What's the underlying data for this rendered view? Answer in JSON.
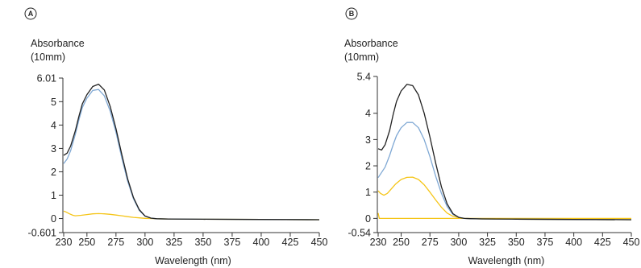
{
  "chart_data": [
    {
      "panel": "A",
      "type": "line",
      "ylabel_line1": "Absorbance",
      "ylabel_line2": "(10mm)",
      "xlabel": "Wavelength (nm)",
      "xlim": [
        230,
        450
      ],
      "ylim": [
        -0.601,
        6.01
      ],
      "x_ticks": [
        230,
        250,
        275,
        300,
        325,
        350,
        375,
        400,
        425,
        450
      ],
      "y_ticks": [
        -0.601,
        0,
        1,
        2,
        3,
        4,
        5,
        6.01
      ],
      "y_tick_labels": [
        "-0.601",
        "0",
        "1",
        "2",
        "3",
        "4",
        "5",
        "6.01"
      ],
      "series": [
        {
          "color": "#f5c518",
          "x": [
            230,
            232,
            235,
            238,
            240,
            245,
            250,
            255,
            260,
            265,
            270,
            275,
            280,
            285,
            290,
            295,
            300,
            305,
            310,
            320,
            350,
            400,
            450
          ],
          "y": [
            0.32,
            0.28,
            0.2,
            0.14,
            0.12,
            0.14,
            0.17,
            0.2,
            0.21,
            0.2,
            0.18,
            0.15,
            0.12,
            0.08,
            0.05,
            0.03,
            0.01,
            0.0,
            -0.01,
            -0.02,
            -0.03,
            -0.04,
            -0.05
          ]
        },
        {
          "color": "#7fa8d4",
          "x": [
            230,
            233,
            236,
            240,
            243,
            246,
            250,
            255,
            260,
            265,
            270,
            275,
            280,
            285,
            290,
            295,
            300,
            305,
            310,
            320,
            350,
            400,
            450
          ],
          "y": [
            2.35,
            2.55,
            2.9,
            3.6,
            4.2,
            4.75,
            5.15,
            5.48,
            5.52,
            5.25,
            4.6,
            3.7,
            2.6,
            1.6,
            0.85,
            0.35,
            0.1,
            0.02,
            -0.01,
            -0.02,
            -0.03,
            -0.04,
            -0.05
          ]
        },
        {
          "color": "#222222",
          "x": [
            230,
            233,
            236,
            240,
            243,
            246,
            250,
            255,
            260,
            265,
            270,
            275,
            280,
            285,
            290,
            295,
            300,
            305,
            310,
            320,
            350,
            400,
            450
          ],
          "y": [
            2.7,
            2.8,
            3.1,
            3.75,
            4.35,
            4.9,
            5.3,
            5.65,
            5.75,
            5.5,
            4.8,
            3.85,
            2.75,
            1.7,
            0.9,
            0.38,
            0.11,
            0.02,
            -0.01,
            -0.02,
            -0.03,
            -0.04,
            -0.05
          ]
        }
      ]
    },
    {
      "panel": "B",
      "type": "line",
      "ylabel_line1": "Absorbance",
      "ylabel_line2": "(10mm)",
      "xlabel": "Wavelength (nm)",
      "xlim": [
        230,
        450
      ],
      "ylim": [
        -0.54,
        5.4
      ],
      "x_ticks": [
        230,
        250,
        275,
        300,
        325,
        350,
        375,
        400,
        425,
        450
      ],
      "y_ticks": [
        -0.54,
        0,
        1,
        2,
        3,
        4,
        5.4
      ],
      "y_tick_labels": [
        "-0.54",
        "0",
        "1",
        "2",
        "3",
        "4",
        "5.4"
      ],
      "series": [
        {
          "color": "#f5c518",
          "x": [
            230,
            231,
            300,
            450
          ],
          "y": [
            0.2,
            0.0,
            0.0,
            0.0
          ]
        },
        {
          "color": "#f5c518",
          "x": [
            230,
            232,
            235,
            238,
            241,
            245,
            250,
            255,
            260,
            265,
            270,
            275,
            280,
            285,
            290,
            295,
            300,
            305,
            310,
            320,
            350,
            400,
            450
          ],
          "y": [
            1.05,
            0.95,
            0.88,
            0.95,
            1.1,
            1.3,
            1.48,
            1.56,
            1.57,
            1.48,
            1.28,
            1.0,
            0.7,
            0.42,
            0.2,
            0.08,
            0.03,
            0.0,
            -0.01,
            -0.02,
            -0.03,
            -0.04,
            -0.05
          ]
        },
        {
          "color": "#7fa8d4",
          "x": [
            230,
            233,
            236,
            240,
            243,
            246,
            250,
            255,
            260,
            265,
            270,
            275,
            280,
            285,
            290,
            295,
            300,
            305,
            310,
            320,
            350,
            400,
            450
          ],
          "y": [
            1.55,
            1.75,
            1.95,
            2.4,
            2.8,
            3.15,
            3.45,
            3.65,
            3.65,
            3.45,
            3.0,
            2.35,
            1.6,
            0.95,
            0.45,
            0.15,
            0.04,
            0.0,
            -0.01,
            -0.02,
            -0.03,
            -0.04,
            -0.05
          ]
        },
        {
          "color": "#222222",
          "x": [
            230,
            233,
            236,
            240,
            243,
            246,
            250,
            255,
            260,
            265,
            270,
            275,
            280,
            285,
            290,
            295,
            300,
            305,
            310,
            320,
            350,
            400,
            450
          ],
          "y": [
            2.65,
            2.6,
            2.8,
            3.35,
            3.95,
            4.45,
            4.85,
            5.1,
            5.05,
            4.7,
            4.0,
            3.1,
            2.1,
            1.2,
            0.55,
            0.18,
            0.04,
            0.0,
            -0.01,
            -0.02,
            -0.03,
            -0.04,
            -0.05
          ]
        }
      ]
    }
  ]
}
